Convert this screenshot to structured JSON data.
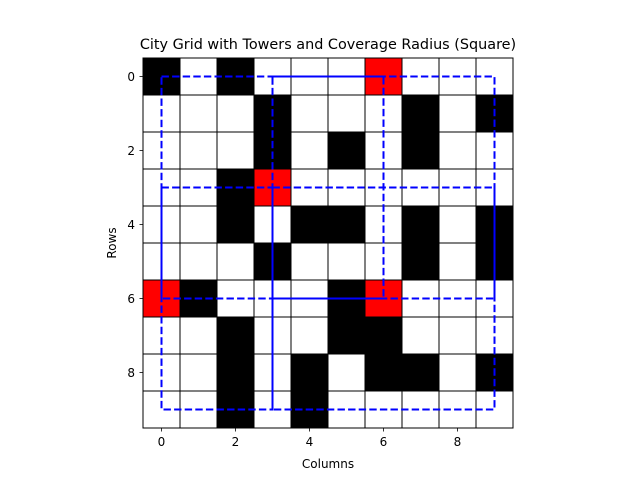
{
  "chart_data": {
    "type": "heatmap",
    "title": "City Grid with Towers and Coverage Radius (Square)",
    "xlabel": "Columns",
    "ylabel": "Rows",
    "x_ticks": [
      0,
      2,
      4,
      6,
      8
    ],
    "y_ticks": [
      0,
      2,
      4,
      6,
      8
    ],
    "xlim": [
      -0.5,
      9.5
    ],
    "ylim": [
      9.5,
      -0.5
    ],
    "value_legend": {
      "0": "empty",
      "1": "building",
      "2": "tower"
    },
    "colors": {
      "empty": "#ffffff",
      "building": "#000000",
      "tower": "#ff0000",
      "coverage": "#0000ff",
      "gridline": "#000000"
    },
    "grid": [
      [
        1,
        0,
        1,
        0,
        0,
        0,
        2,
        0,
        0,
        0
      ],
      [
        0,
        0,
        0,
        1,
        0,
        0,
        0,
        1,
        0,
        1
      ],
      [
        0,
        0,
        0,
        1,
        0,
        1,
        0,
        1,
        0,
        0
      ],
      [
        0,
        0,
        1,
        2,
        0,
        0,
        0,
        0,
        0,
        0
      ],
      [
        0,
        0,
        1,
        0,
        1,
        1,
        0,
        1,
        0,
        1
      ],
      [
        0,
        0,
        0,
        1,
        0,
        0,
        0,
        1,
        0,
        1
      ],
      [
        2,
        1,
        0,
        0,
        0,
        1,
        2,
        0,
        0,
        0
      ],
      [
        0,
        0,
        1,
        0,
        0,
        1,
        1,
        0,
        0,
        0
      ],
      [
        0,
        0,
        1,
        0,
        1,
        0,
        1,
        1,
        0,
        1
      ],
      [
        0,
        0,
        1,
        0,
        1,
        0,
        0,
        0,
        0,
        0
      ]
    ],
    "towers": [
      {
        "row": 0,
        "col": 6
      },
      {
        "row": 3,
        "col": 3
      },
      {
        "row": 6,
        "col": 0
      },
      {
        "row": 6,
        "col": 6
      }
    ],
    "coverage_squares": [
      {
        "row_min": 0,
        "row_max": 6,
        "col_min": 3,
        "col_max": 9
      },
      {
        "row_min": 0,
        "row_max": 6,
        "col_min": 0,
        "col_max": 6
      },
      {
        "row_min": 3,
        "row_max": 9,
        "col_min": 0,
        "col_max": 3
      },
      {
        "row_min": 3,
        "row_max": 9,
        "col_min": 3,
        "col_max": 9
      }
    ]
  }
}
